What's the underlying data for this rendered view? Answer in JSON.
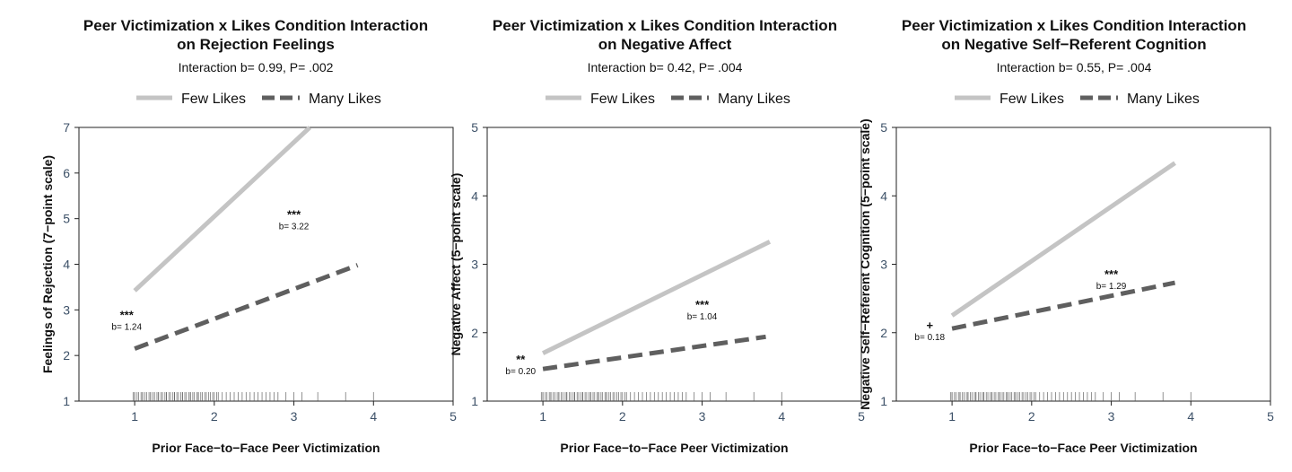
{
  "legend": {
    "entries": [
      {
        "name": "Few Likes",
        "color": "#c4c4c4",
        "dash": "solid"
      },
      {
        "name": "Many Likes",
        "color": "#5f5f5f",
        "dash": "dashed"
      }
    ]
  },
  "chart_data": [
    {
      "type": "line",
      "title": [
        "Peer Victimization x Likes Condition Interaction",
        "on Rejection Feelings"
      ],
      "subtitle": "Interaction b= 0.99, P= .002",
      "xlabel": "Prior Face−to−Face Peer Victimization",
      "ylabel": "Feelings of Rejection (7−point scale)",
      "xlim": [
        0.3,
        5
      ],
      "ylim": [
        1,
        7
      ],
      "xticks": [
        1,
        2,
        3,
        4,
        5
      ],
      "yticks": [
        1,
        2,
        3,
        4,
        5,
        6,
        7
      ],
      "legend_position": "top",
      "series": [
        {
          "name": "Few Likes",
          "x": [
            1.0,
            3.2
          ],
          "y": [
            3.42,
            7.0
          ]
        },
        {
          "name": "Many Likes",
          "x": [
            1.0,
            3.8
          ],
          "y": [
            2.15,
            3.98
          ]
        }
      ],
      "annotations": [
        {
          "stars": "***",
          "text": "b= 1.24",
          "x": 0.9,
          "y": 2.8
        },
        {
          "stars": "***",
          "text": "b= 3.22",
          "x": 3.0,
          "y": 5.0
        }
      ],
      "rug": [
        0.98,
        1.0,
        1.0,
        1.03,
        1.05,
        1.08,
        1.1,
        1.1,
        1.13,
        1.15,
        1.18,
        1.2,
        1.2,
        1.23,
        1.25,
        1.28,
        1.3,
        1.3,
        1.33,
        1.35,
        1.38,
        1.4,
        1.4,
        1.43,
        1.45,
        1.48,
        1.5,
        1.5,
        1.53,
        1.55,
        1.58,
        1.6,
        1.6,
        1.63,
        1.65,
        1.68,
        1.7,
        1.7,
        1.73,
        1.75,
        1.78,
        1.8,
        1.8,
        1.83,
        1.85,
        1.88,
        1.9,
        1.93,
        1.95,
        1.98,
        2.0,
        2.03,
        2.05,
        2.1,
        2.15,
        2.2,
        2.25,
        2.3,
        2.35,
        2.4,
        2.45,
        2.5,
        2.55,
        2.6,
        2.65,
        2.7,
        2.75,
        2.8,
        2.9,
        3.0,
        3.1,
        3.3,
        3.65,
        4.0
      ]
    },
    {
      "type": "line",
      "title": [
        "Peer Victimization x Likes Condition Interaction",
        "on Negative Affect"
      ],
      "subtitle": "Interaction b= 0.42, P= .004",
      "xlabel": "Prior Face−to−Face Peer Victimization",
      "ylabel": "Negative Affect (5−point scale)",
      "xlim": [
        0.3,
        5
      ],
      "ylim": [
        1,
        5
      ],
      "xticks": [
        1,
        2,
        3,
        4,
        5
      ],
      "yticks": [
        1,
        2,
        3,
        4,
        5
      ],
      "legend_position": "top",
      "series": [
        {
          "name": "Few Likes",
          "x": [
            1.0,
            3.85
          ],
          "y": [
            1.7,
            3.33
          ]
        },
        {
          "name": "Many Likes",
          "x": [
            1.0,
            3.8
          ],
          "y": [
            1.47,
            1.94
          ]
        }
      ],
      "annotations": [
        {
          "stars": "**",
          "text": "b= 0.20",
          "x": 0.72,
          "y": 1.55
        },
        {
          "stars": "***",
          "text": "b= 1.04",
          "x": 3.0,
          "y": 2.35
        }
      ],
      "rug": [
        0.98,
        1.0,
        1.0,
        1.03,
        1.05,
        1.08,
        1.1,
        1.1,
        1.13,
        1.15,
        1.18,
        1.2,
        1.2,
        1.23,
        1.25,
        1.28,
        1.3,
        1.3,
        1.33,
        1.35,
        1.38,
        1.4,
        1.4,
        1.43,
        1.45,
        1.48,
        1.5,
        1.5,
        1.53,
        1.55,
        1.58,
        1.6,
        1.6,
        1.63,
        1.65,
        1.68,
        1.7,
        1.7,
        1.73,
        1.75,
        1.78,
        1.8,
        1.8,
        1.83,
        1.85,
        1.88,
        1.9,
        1.93,
        1.95,
        1.98,
        2.0,
        2.03,
        2.05,
        2.1,
        2.15,
        2.2,
        2.25,
        2.3,
        2.35,
        2.4,
        2.45,
        2.5,
        2.55,
        2.6,
        2.65,
        2.7,
        2.75,
        2.8,
        2.9,
        3.0,
        3.1,
        3.3,
        3.65,
        4.0
      ]
    },
    {
      "type": "line",
      "title": [
        "Peer Victimization x Likes Condition Interaction",
        "on Negative Self−Referent Cognition"
      ],
      "subtitle": "Interaction b= 0.55, P= .004",
      "xlabel": "Prior Face−to−Face Peer Victimization",
      "ylabel": "Negative Self−Referent Cognition (5−point scale)",
      "xlim": [
        0.3,
        5
      ],
      "ylim": [
        1,
        5
      ],
      "xticks": [
        1,
        2,
        3,
        4,
        5
      ],
      "yticks": [
        1,
        2,
        3,
        4,
        5
      ],
      "legend_position": "top",
      "series": [
        {
          "name": "Few Likes",
          "x": [
            1.0,
            3.8
          ],
          "y": [
            2.25,
            4.48
          ]
        },
        {
          "name": "Many Likes",
          "x": [
            1.0,
            3.8
          ],
          "y": [
            2.06,
            2.73
          ]
        }
      ],
      "annotations": [
        {
          "stars": "+",
          "text": "b= 0.18",
          "x": 0.72,
          "y": 2.05
        },
        {
          "stars": "***",
          "text": "b= 1.29",
          "x": 3.0,
          "y": 2.8
        }
      ],
      "rug": [
        0.98,
        1.0,
        1.0,
        1.03,
        1.05,
        1.08,
        1.1,
        1.1,
        1.13,
        1.15,
        1.18,
        1.2,
        1.2,
        1.23,
        1.25,
        1.28,
        1.3,
        1.3,
        1.33,
        1.35,
        1.38,
        1.4,
        1.4,
        1.43,
        1.45,
        1.48,
        1.5,
        1.5,
        1.53,
        1.55,
        1.58,
        1.6,
        1.6,
        1.63,
        1.65,
        1.68,
        1.7,
        1.7,
        1.73,
        1.75,
        1.78,
        1.8,
        1.8,
        1.83,
        1.85,
        1.88,
        1.9,
        1.93,
        1.95,
        1.98,
        2.0,
        2.03,
        2.05,
        2.1,
        2.15,
        2.2,
        2.25,
        2.3,
        2.35,
        2.4,
        2.45,
        2.5,
        2.55,
        2.6,
        2.65,
        2.7,
        2.75,
        2.8,
        2.9,
        3.0,
        3.1,
        3.3,
        3.65,
        4.0
      ]
    }
  ]
}
